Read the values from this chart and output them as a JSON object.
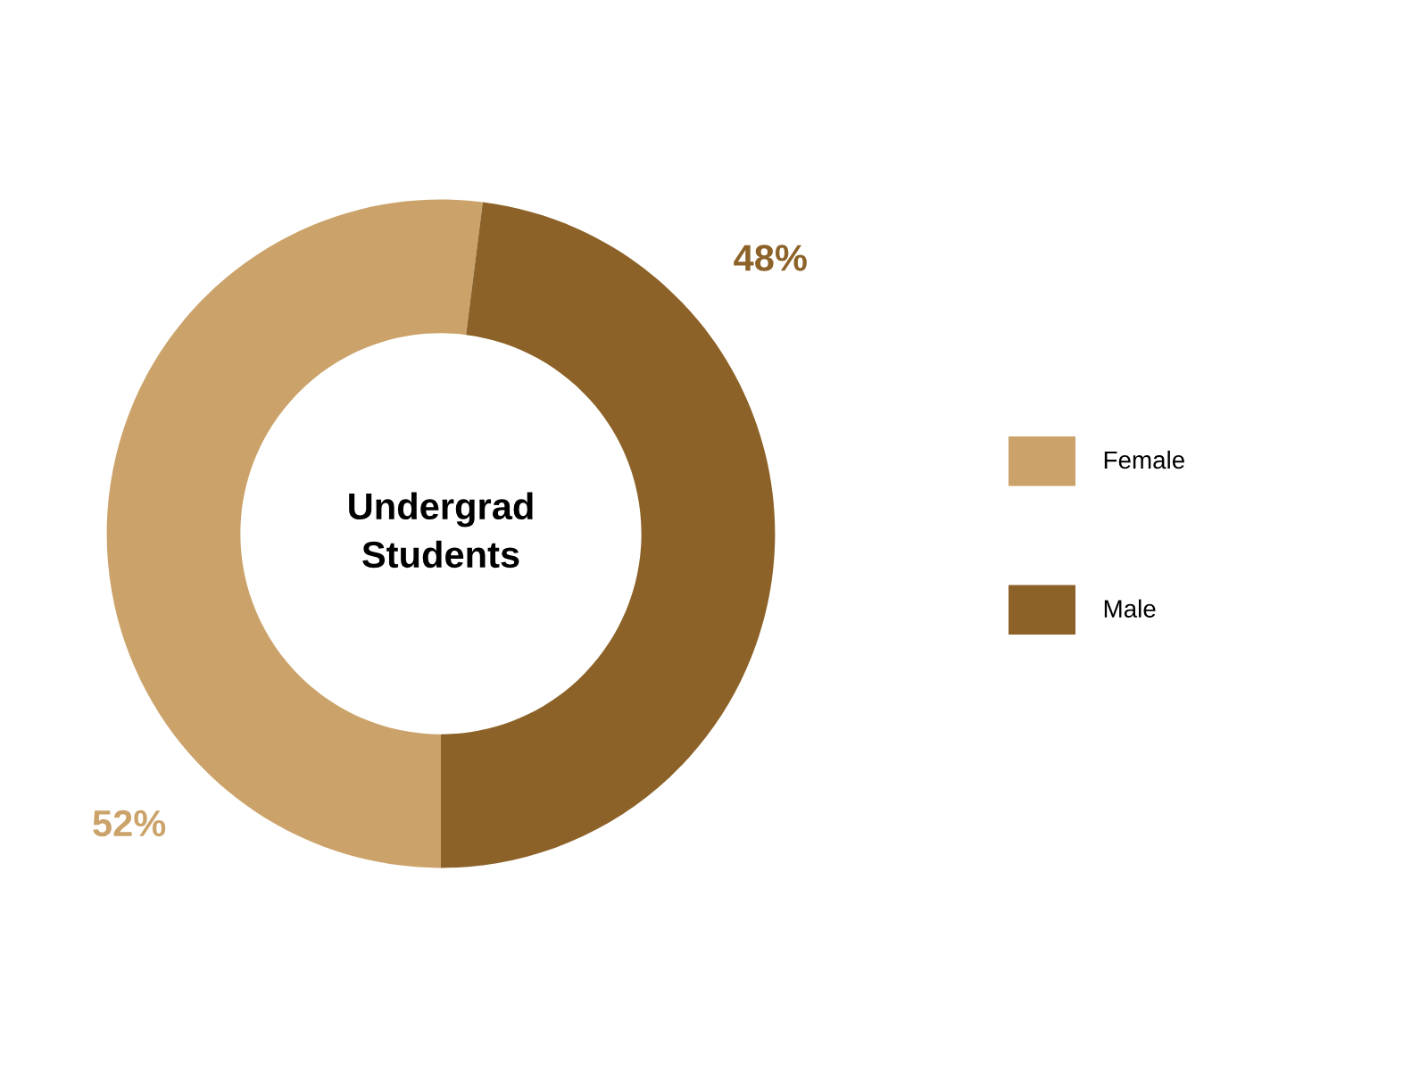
{
  "chart_data": {
    "type": "donut",
    "title": "Undergrad\nStudents",
    "categories": [
      "Female",
      "Male"
    ],
    "values": [
      52,
      48
    ],
    "colors": [
      "#cba36a",
      "#8c6228"
    ],
    "value_labels": [
      "52%",
      "48%"
    ],
    "legend": "right"
  }
}
